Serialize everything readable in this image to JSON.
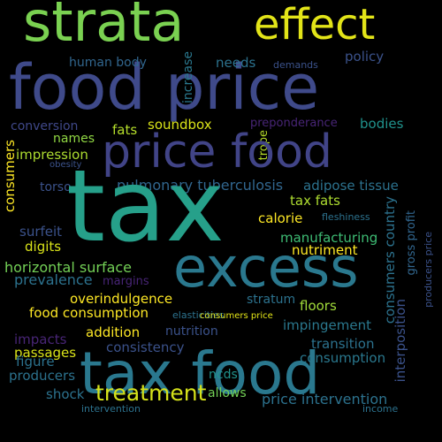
{
  "words": {
    "tax": "tax",
    "food_price": "food price",
    "strata": "strata",
    "effect": "effect",
    "price_food": "price food",
    "excess": "excess",
    "tax_food": "tax food",
    "treatment": "treatment",
    "human_body": "human body",
    "needs": "needs",
    "demands": "demands",
    "policy": "policy",
    "increase": "increase",
    "soundbox": "soundbox",
    "preponderance": "preponderance",
    "conversion": "conversion",
    "bodies": "bodies",
    "fats": "fats",
    "names": "names",
    "trope": "trope",
    "impression": "impression",
    "obesity": "obesity",
    "consumers": "consumers",
    "torso": "torso",
    "pulmonary_tuberculosis": "pulmonary tuberculosis",
    "adipose_tissue": "adipose tissue",
    "tax_fats": "tax fats",
    "calorie": "calorie",
    "fleshiness": "fleshiness",
    "surfeit": "surfeit",
    "digits": "digits",
    "manufacturing": "manufacturing",
    "nutriment": "nutriment",
    "horizontal_surface": "horizontal surface",
    "prevalence": "prevalence",
    "margins": "margins",
    "overindulgence": "overindulgence",
    "stratum": "stratum",
    "floors": "floors",
    "food_consumption": "food consumption",
    "elasticities": "elasticities",
    "impingement": "impingement",
    "addition": "addition",
    "nutrition": "nutrition",
    "impacts": "impacts",
    "consistency": "consistency",
    "transition": "transition",
    "passages": "passages",
    "consumption": "consumption",
    "figure": "figure",
    "producers": "producers",
    "ncds": "ncds",
    "allows": "allows",
    "shock": "shock",
    "price_intervention": "price intervention",
    "intervention": "intervention",
    "income": "income",
    "consumers_price": "consumers price",
    "consumers_country": "consumers country",
    "gross_profit": "gross profit",
    "interposition": "interposition",
    "producers_price": "producers price"
  },
  "colors": {
    "background": "#000000"
  }
}
